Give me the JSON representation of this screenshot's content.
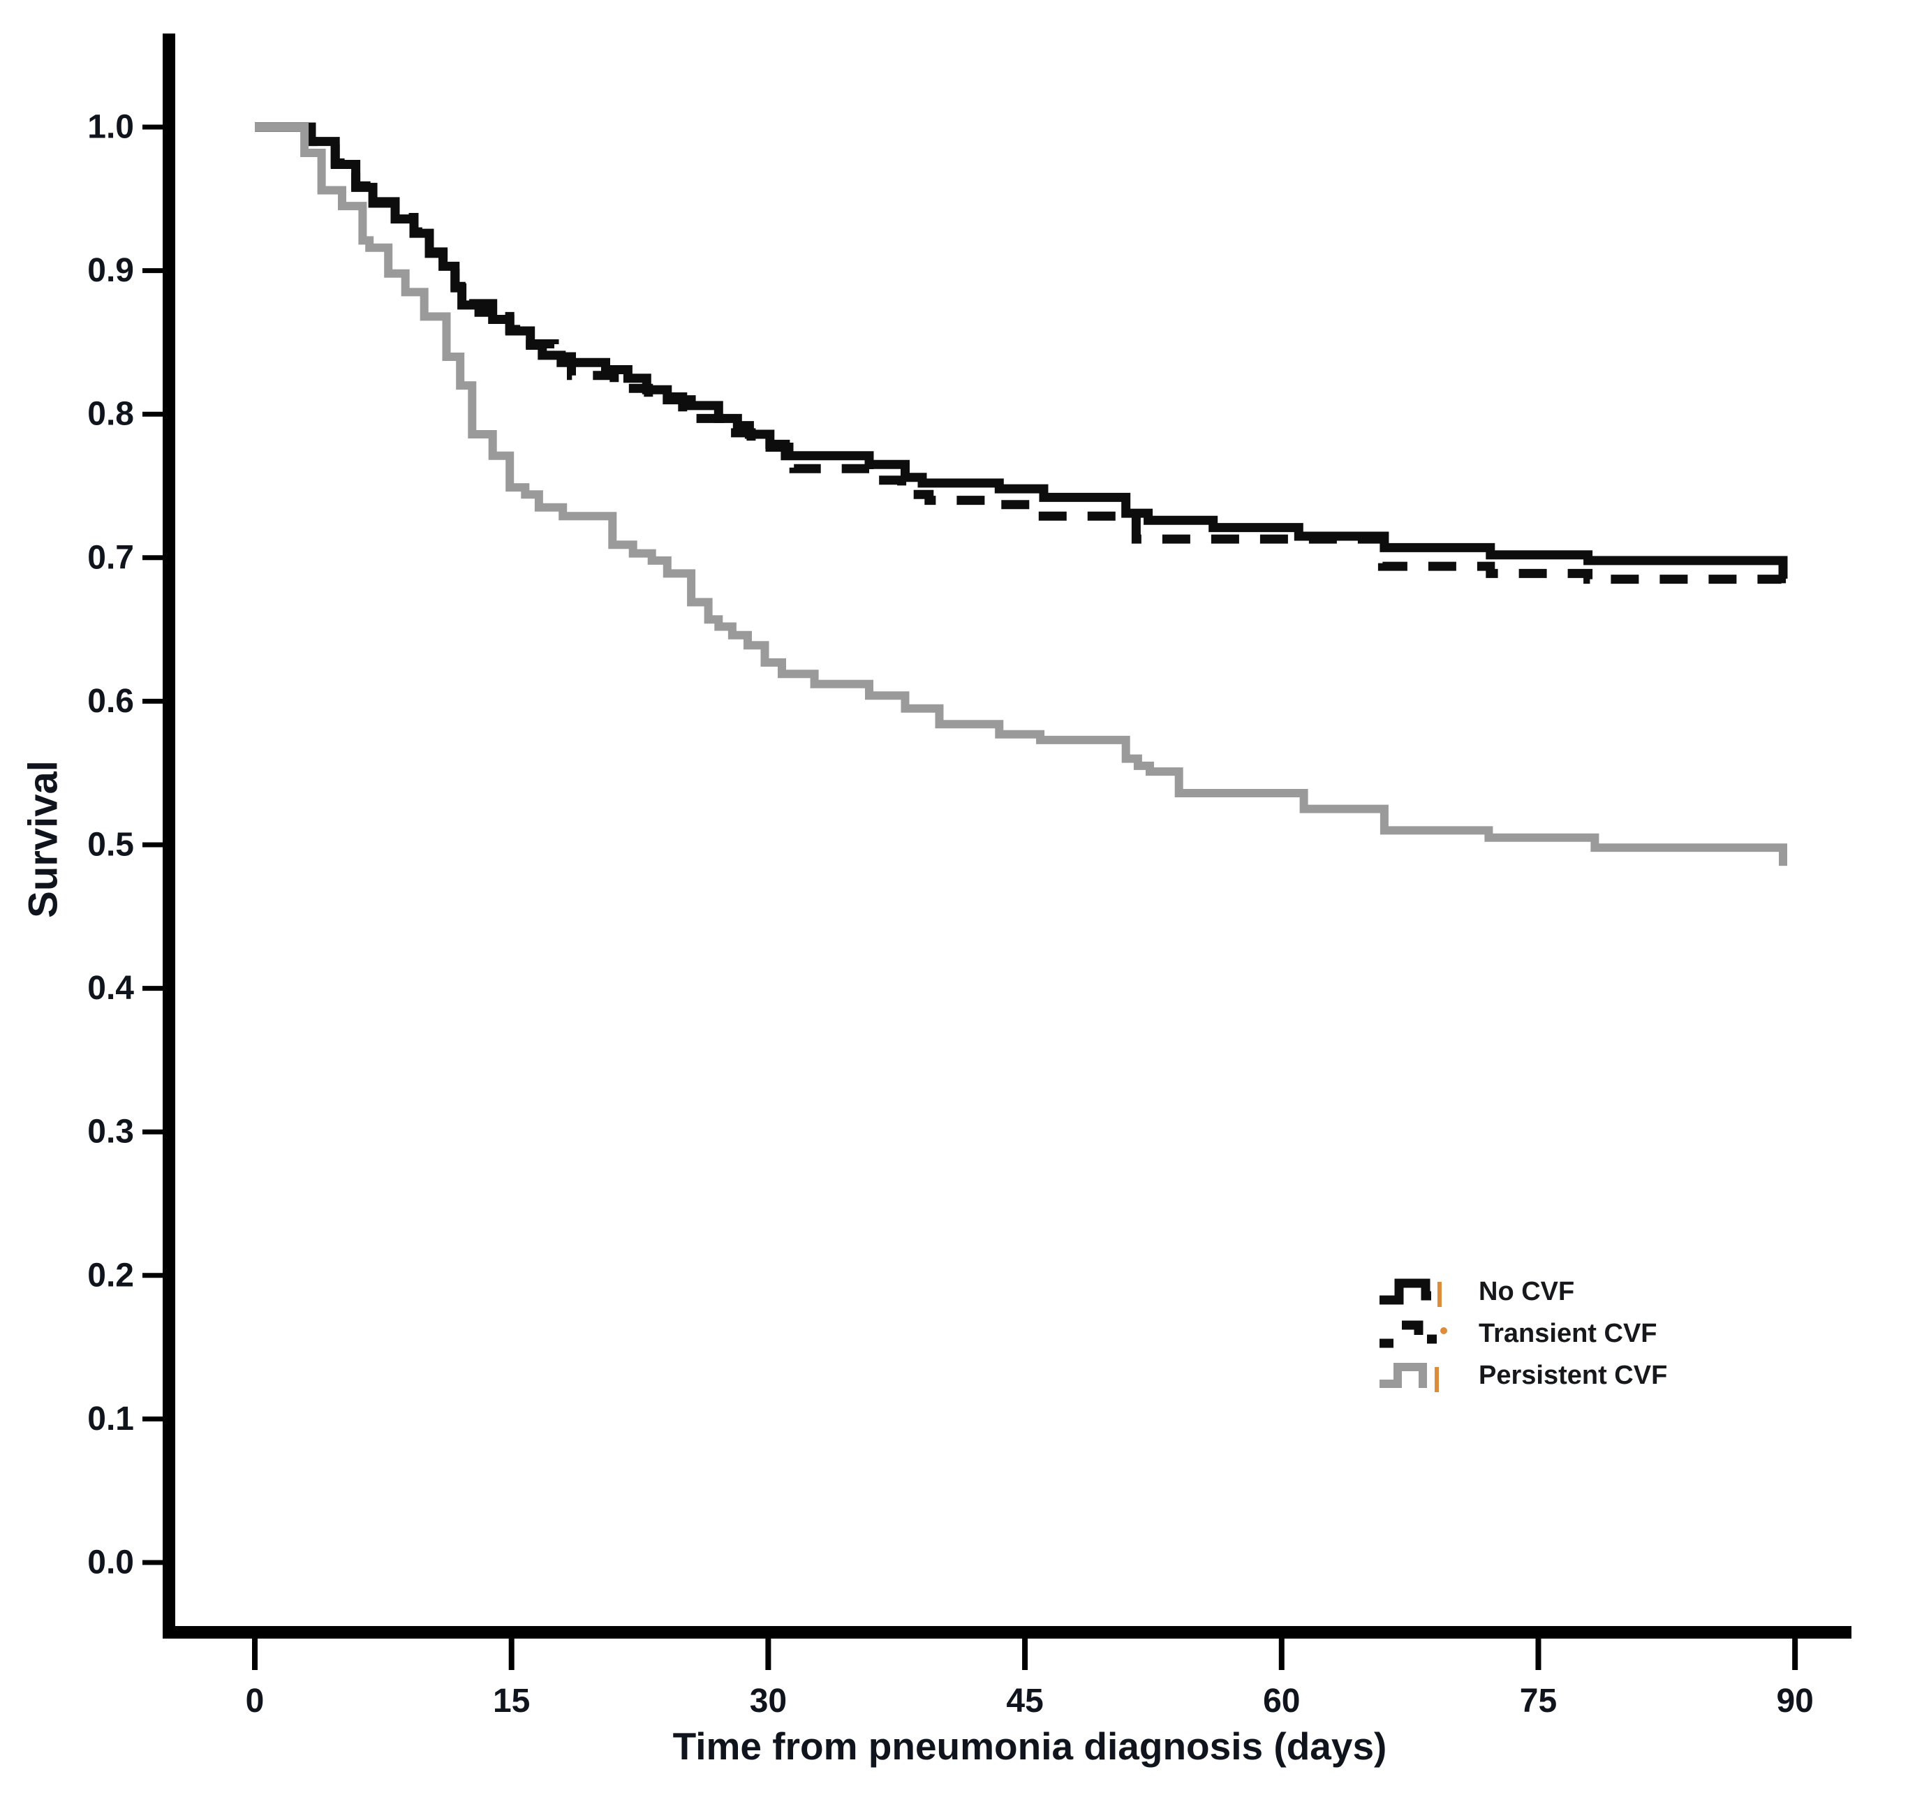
{
  "figure": {
    "kind": "kaplan-meier-survival-plot",
    "title": ""
  },
  "colors": {
    "background": "#ffffff",
    "axis": "#000000",
    "tick_label": "#10141c",
    "series_no_cvf": "#0d0d0d",
    "series_transient_cvf": "#0d0d0d",
    "series_persistent_cvf": "#9a9a9a",
    "censor_mark": "#dd8c3c"
  },
  "y_axis": {
    "title": "Survival",
    "tick_labels": [
      "1.0",
      "0.9",
      "0.8",
      "0.7",
      "0.6",
      "0.5",
      "0.4",
      "0.3",
      "0.2",
      "0.1",
      "0.0"
    ],
    "tick_values": [
      1.0,
      0.9,
      0.8,
      0.7,
      0.6,
      0.5,
      0.4,
      0.3,
      0.2,
      0.1,
      0.0
    ]
  },
  "x_axis": {
    "title": "Time from pneumonia diagnosis (days)",
    "tick_labels": [
      "0",
      "15",
      "30",
      "45",
      "60",
      "75",
      "90"
    ],
    "tick_values": [
      0,
      15,
      30,
      45,
      60,
      75,
      90
    ]
  },
  "legend": {
    "items": [
      {
        "label": "No CVF",
        "style": "solid-black"
      },
      {
        "label": "Transient CVF",
        "style": "dashed-black"
      },
      {
        "label": "Persistent CVF",
        "style": "solid-gray"
      }
    ]
  },
  "chart_data": {
    "type": "line",
    "subtype": "step-survival",
    "title": "",
    "xlabel": "Time from pneumonia diagnosis (days)",
    "ylabel": "Survival",
    "xlim": [
      0,
      90
    ],
    "ylim": [
      0.0,
      1.0
    ],
    "grid": false,
    "legend_position": "right-center",
    "series": [
      {
        "name": "Transient CVF",
        "line": "dashed",
        "color": "#0d0d0d",
        "points": [
          [
            0,
            1.0
          ],
          [
            3.3,
            0.99
          ],
          [
            4.7,
            0.975
          ],
          [
            5.9,
            0.959
          ],
          [
            6.9,
            0.948
          ],
          [
            8.2,
            0.937
          ],
          [
            9.3,
            0.927
          ],
          [
            10.2,
            0.913
          ],
          [
            11.0,
            0.904
          ],
          [
            11.7,
            0.889
          ],
          [
            12.5,
            0.877
          ],
          [
            13.9,
            0.868
          ],
          [
            14.9,
            0.859
          ],
          [
            16.1,
            0.849
          ],
          [
            17.5,
            0.84
          ],
          [
            18.5,
            0.827
          ],
          [
            21.0,
            0.818
          ],
          [
            23.0,
            0.812
          ],
          [
            25.0,
            0.797
          ],
          [
            27.5,
            0.787
          ],
          [
            29.0,
            0.777
          ],
          [
            31.5,
            0.762
          ],
          [
            35.9,
            0.754
          ],
          [
            37.8,
            0.744
          ],
          [
            39.4,
            0.74
          ],
          [
            42.9,
            0.737
          ],
          [
            45.8,
            0.729
          ],
          [
            51.5,
            0.713
          ],
          [
            65.9,
            0.694
          ],
          [
            72.2,
            0.689
          ],
          [
            77.9,
            0.685
          ],
          [
            89.2,
            0.685
          ]
        ]
      },
      {
        "name": "No CVF",
        "line": "solid",
        "color": "#0d0d0d",
        "points": [
          [
            0,
            1.0
          ],
          [
            3.3,
            0.99
          ],
          [
            4.7,
            0.974
          ],
          [
            5.9,
            0.958
          ],
          [
            6.9,
            0.947
          ],
          [
            8.2,
            0.936
          ],
          [
            9.3,
            0.926
          ],
          [
            10.2,
            0.912
          ],
          [
            11.0,
            0.903
          ],
          [
            11.7,
            0.888
          ],
          [
            12.1,
            0.876
          ],
          [
            13.1,
            0.871
          ],
          [
            13.9,
            0.866
          ],
          [
            14.9,
            0.858
          ],
          [
            16.1,
            0.848
          ],
          [
            16.8,
            0.841
          ],
          [
            17.9,
            0.836
          ],
          [
            20.5,
            0.831
          ],
          [
            21.8,
            0.825
          ],
          [
            22.9,
            0.817
          ],
          [
            24.1,
            0.81
          ],
          [
            25.5,
            0.806
          ],
          [
            27.1,
            0.797
          ],
          [
            28.2,
            0.792
          ],
          [
            28.9,
            0.786
          ],
          [
            30.1,
            0.779
          ],
          [
            31.0,
            0.771
          ],
          [
            35.9,
            0.765
          ],
          [
            38.0,
            0.756
          ],
          [
            39.0,
            0.752
          ],
          [
            43.5,
            0.748
          ],
          [
            46.1,
            0.742
          ],
          [
            50.9,
            0.731
          ],
          [
            52.2,
            0.726
          ],
          [
            56.0,
            0.721
          ],
          [
            61.0,
            0.715
          ],
          [
            66.0,
            0.707
          ],
          [
            72.2,
            0.702
          ],
          [
            77.9,
            0.698
          ],
          [
            89.3,
            0.698
          ]
        ]
      },
      {
        "name": "Persistent CVF",
        "line": "solid",
        "color": "#9a9a9a",
        "points": [
          [
            0,
            1.0
          ],
          [
            2.9,
            0.982
          ],
          [
            3.9,
            0.956
          ],
          [
            5.1,
            0.945
          ],
          [
            6.3,
            0.921
          ],
          [
            6.7,
            0.916
          ],
          [
            7.8,
            0.898
          ],
          [
            8.8,
            0.885
          ],
          [
            9.9,
            0.868
          ],
          [
            11.2,
            0.84
          ],
          [
            12.0,
            0.82
          ],
          [
            12.7,
            0.786
          ],
          [
            13.9,
            0.771
          ],
          [
            14.9,
            0.749
          ],
          [
            15.8,
            0.744
          ],
          [
            16.6,
            0.735
          ],
          [
            18.0,
            0.729
          ],
          [
            20.9,
            0.709
          ],
          [
            22.1,
            0.703
          ],
          [
            23.2,
            0.698
          ],
          [
            24.1,
            0.689
          ],
          [
            25.5,
            0.669
          ],
          [
            26.5,
            0.657
          ],
          [
            27.1,
            0.652
          ],
          [
            27.9,
            0.646
          ],
          [
            28.8,
            0.639
          ],
          [
            29.8,
            0.627
          ],
          [
            30.8,
            0.619
          ],
          [
            32.7,
            0.612
          ],
          [
            35.9,
            0.604
          ],
          [
            38.0,
            0.595
          ],
          [
            40.0,
            0.584
          ],
          [
            43.5,
            0.577
          ],
          [
            45.9,
            0.573
          ],
          [
            50.9,
            0.56
          ],
          [
            51.6,
            0.555
          ],
          [
            52.3,
            0.551
          ],
          [
            54.0,
            0.536
          ],
          [
            61.3,
            0.525
          ],
          [
            66.0,
            0.51
          ],
          [
            72.1,
            0.505
          ],
          [
            78.3,
            0.498
          ],
          [
            89.3,
            0.498
          ]
        ]
      }
    ]
  }
}
